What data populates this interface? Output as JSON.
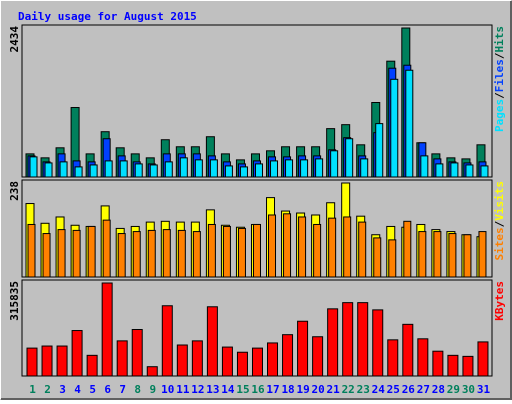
{
  "chart_data": [
    {
      "type": "bar",
      "title": "Daily usage for August 2015",
      "ylim": [
        0,
        2434
      ],
      "legend_separator": "/",
      "series": [
        {
          "name": "Hits",
          "color": "#00805c",
          "values": [
            378,
            313,
            477,
            1135,
            378,
            740,
            477,
            378,
            313,
            609,
            494,
            494,
            658,
            378,
            280,
            378,
            428,
            494,
            494,
            494,
            790,
            855,
            526,
            1217,
            1892,
            2434,
            559,
            378,
            313,
            296,
            526
          ]
        },
        {
          "name": "Files",
          "color": "#0040ff",
          "values": [
            345,
            247,
            378,
            263,
            247,
            625,
            345,
            247,
            214,
            378,
            378,
            378,
            345,
            247,
            214,
            263,
            329,
            329,
            345,
            345,
            444,
            642,
            345,
            724,
            1777,
            1826,
            559,
            296,
            247,
            230,
            247
          ]
        },
        {
          "name": "Pages",
          "color": "#00e0ff",
          "values": [
            329,
            230,
            247,
            165,
            197,
            263,
            263,
            214,
            197,
            247,
            313,
            280,
            280,
            181,
            165,
            214,
            263,
            280,
            280,
            296,
            428,
            625,
            296,
            872,
            1596,
            1744,
            345,
            214,
            230,
            197,
            181
          ]
        }
      ]
    },
    {
      "type": "bar",
      "ylim": [
        0,
        238
      ],
      "legend_separator": "/",
      "series": [
        {
          "name": "Visits",
          "color": "#ffff00",
          "values": [
            186,
            136,
            152,
            131,
            128,
            180,
            123,
            128,
            139,
            141,
            139,
            139,
            170,
            131,
            126,
            133,
            201,
            167,
            162,
            157,
            188,
            238,
            154,
            107,
            128,
            126,
            133,
            120,
            115,
            107,
            102
          ]
        },
        {
          "name": "Sites",
          "color": "#ff8000",
          "values": [
            133,
            110,
            120,
            118,
            128,
            144,
            110,
            115,
            118,
            120,
            118,
            115,
            133,
            128,
            123,
            133,
            157,
            160,
            152,
            133,
            149,
            152,
            139,
            99,
            94,
            141,
            115,
            115,
            110,
            107,
            115
          ]
        }
      ]
    },
    {
      "type": "bar",
      "ylim": [
        0,
        315835
      ],
      "series": [
        {
          "name": "KBytes",
          "color": "#ff0000",
          "values": [
            94743,
            101761,
            101761,
            154396,
            70180,
            315835,
            119306,
            157905,
            31581,
            238612,
            105270,
            119306,
            235103,
            98252,
            80707,
            94743,
            112288,
            140360,
            185977,
            133342,
            228085,
            249139,
            249139,
            224576,
            122815,
            175450,
            126324,
            84216,
            70180,
            66671,
            115797
          ]
        }
      ],
      "categories": [
        "1",
        "2",
        "3",
        "4",
        "5",
        "6",
        "7",
        "8",
        "9",
        "10",
        "11",
        "12",
        "13",
        "14",
        "15",
        "16",
        "17",
        "18",
        "19",
        "20",
        "21",
        "22",
        "23",
        "24",
        "25",
        "26",
        "27",
        "28",
        "29",
        "30",
        "31"
      ],
      "category_colors": [
        "#00805c",
        "#00805c",
        "#0000ff",
        "#0000ff",
        "#0000ff",
        "#0000ff",
        "#0000ff",
        "#00805c",
        "#00805c",
        "#0000ff",
        "#0000ff",
        "#0000ff",
        "#0000ff",
        "#0000ff",
        "#00805c",
        "#00805c",
        "#0000ff",
        "#0000ff",
        "#0000ff",
        "#0000ff",
        "#0000ff",
        "#00805c",
        "#00805c",
        "#0000ff",
        "#0000ff",
        "#0000ff",
        "#0000ff",
        "#0000ff",
        "#00805c",
        "#00805c",
        "#0000ff"
      ]
    }
  ]
}
